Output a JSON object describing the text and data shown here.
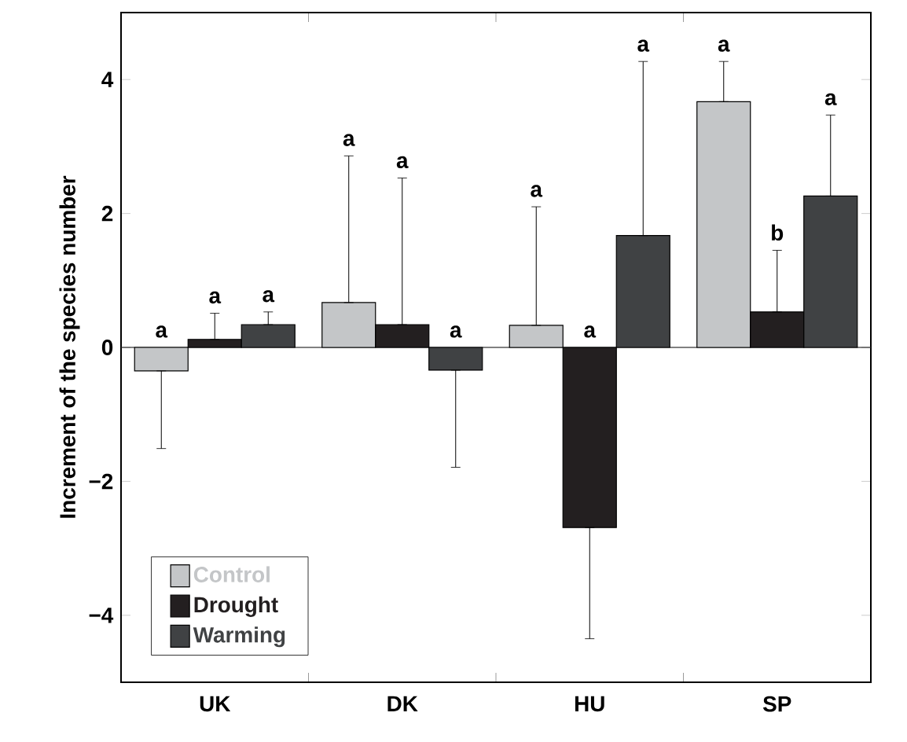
{
  "chart_data": {
    "type": "bar",
    "ylabel": "Increment of the species number",
    "categories": [
      "UK",
      "DK",
      "HU",
      "SP"
    ],
    "series": [
      {
        "name": "Control",
        "color": "#c4c6c8",
        "values": [
          -0.35,
          0.67,
          0.33,
          3.67
        ],
        "errors": [
          [
            -1.51,
            -0.35
          ],
          [
            0.67,
            2.86
          ],
          [
            0.33,
            2.1
          ],
          [
            3.67,
            4.27
          ]
        ]
      },
      {
        "name": "Drought",
        "color": "#231f20",
        "values": [
          0.12,
          0.34,
          -2.69,
          0.53
        ],
        "errors": [
          [
            0.12,
            0.51
          ],
          [
            0.34,
            2.53
          ],
          [
            -4.35,
            -2.69
          ],
          [
            0.53,
            1.45
          ]
        ]
      },
      {
        "name": "Warming",
        "color": "#404244",
        "values": [
          0.34,
          -0.34,
          1.67,
          2.26
        ],
        "errors": [
          [
            0.34,
            0.53
          ],
          [
            -1.79,
            -0.34
          ],
          [
            1.67,
            4.27
          ],
          [
            2.26,
            3.47
          ]
        ]
      }
    ],
    "ylim": [
      -5,
      5
    ],
    "yticks": [
      {
        "value": -4,
        "label": "−4"
      },
      {
        "value": -2,
        "label": "−2"
      },
      0,
      2,
      4
    ],
    "legend": "bottom left",
    "annotations": [
      "a",
      "a",
      "a",
      "a",
      "a",
      "a",
      "a",
      "a",
      "a",
      "a",
      "b",
      "a"
    ]
  }
}
